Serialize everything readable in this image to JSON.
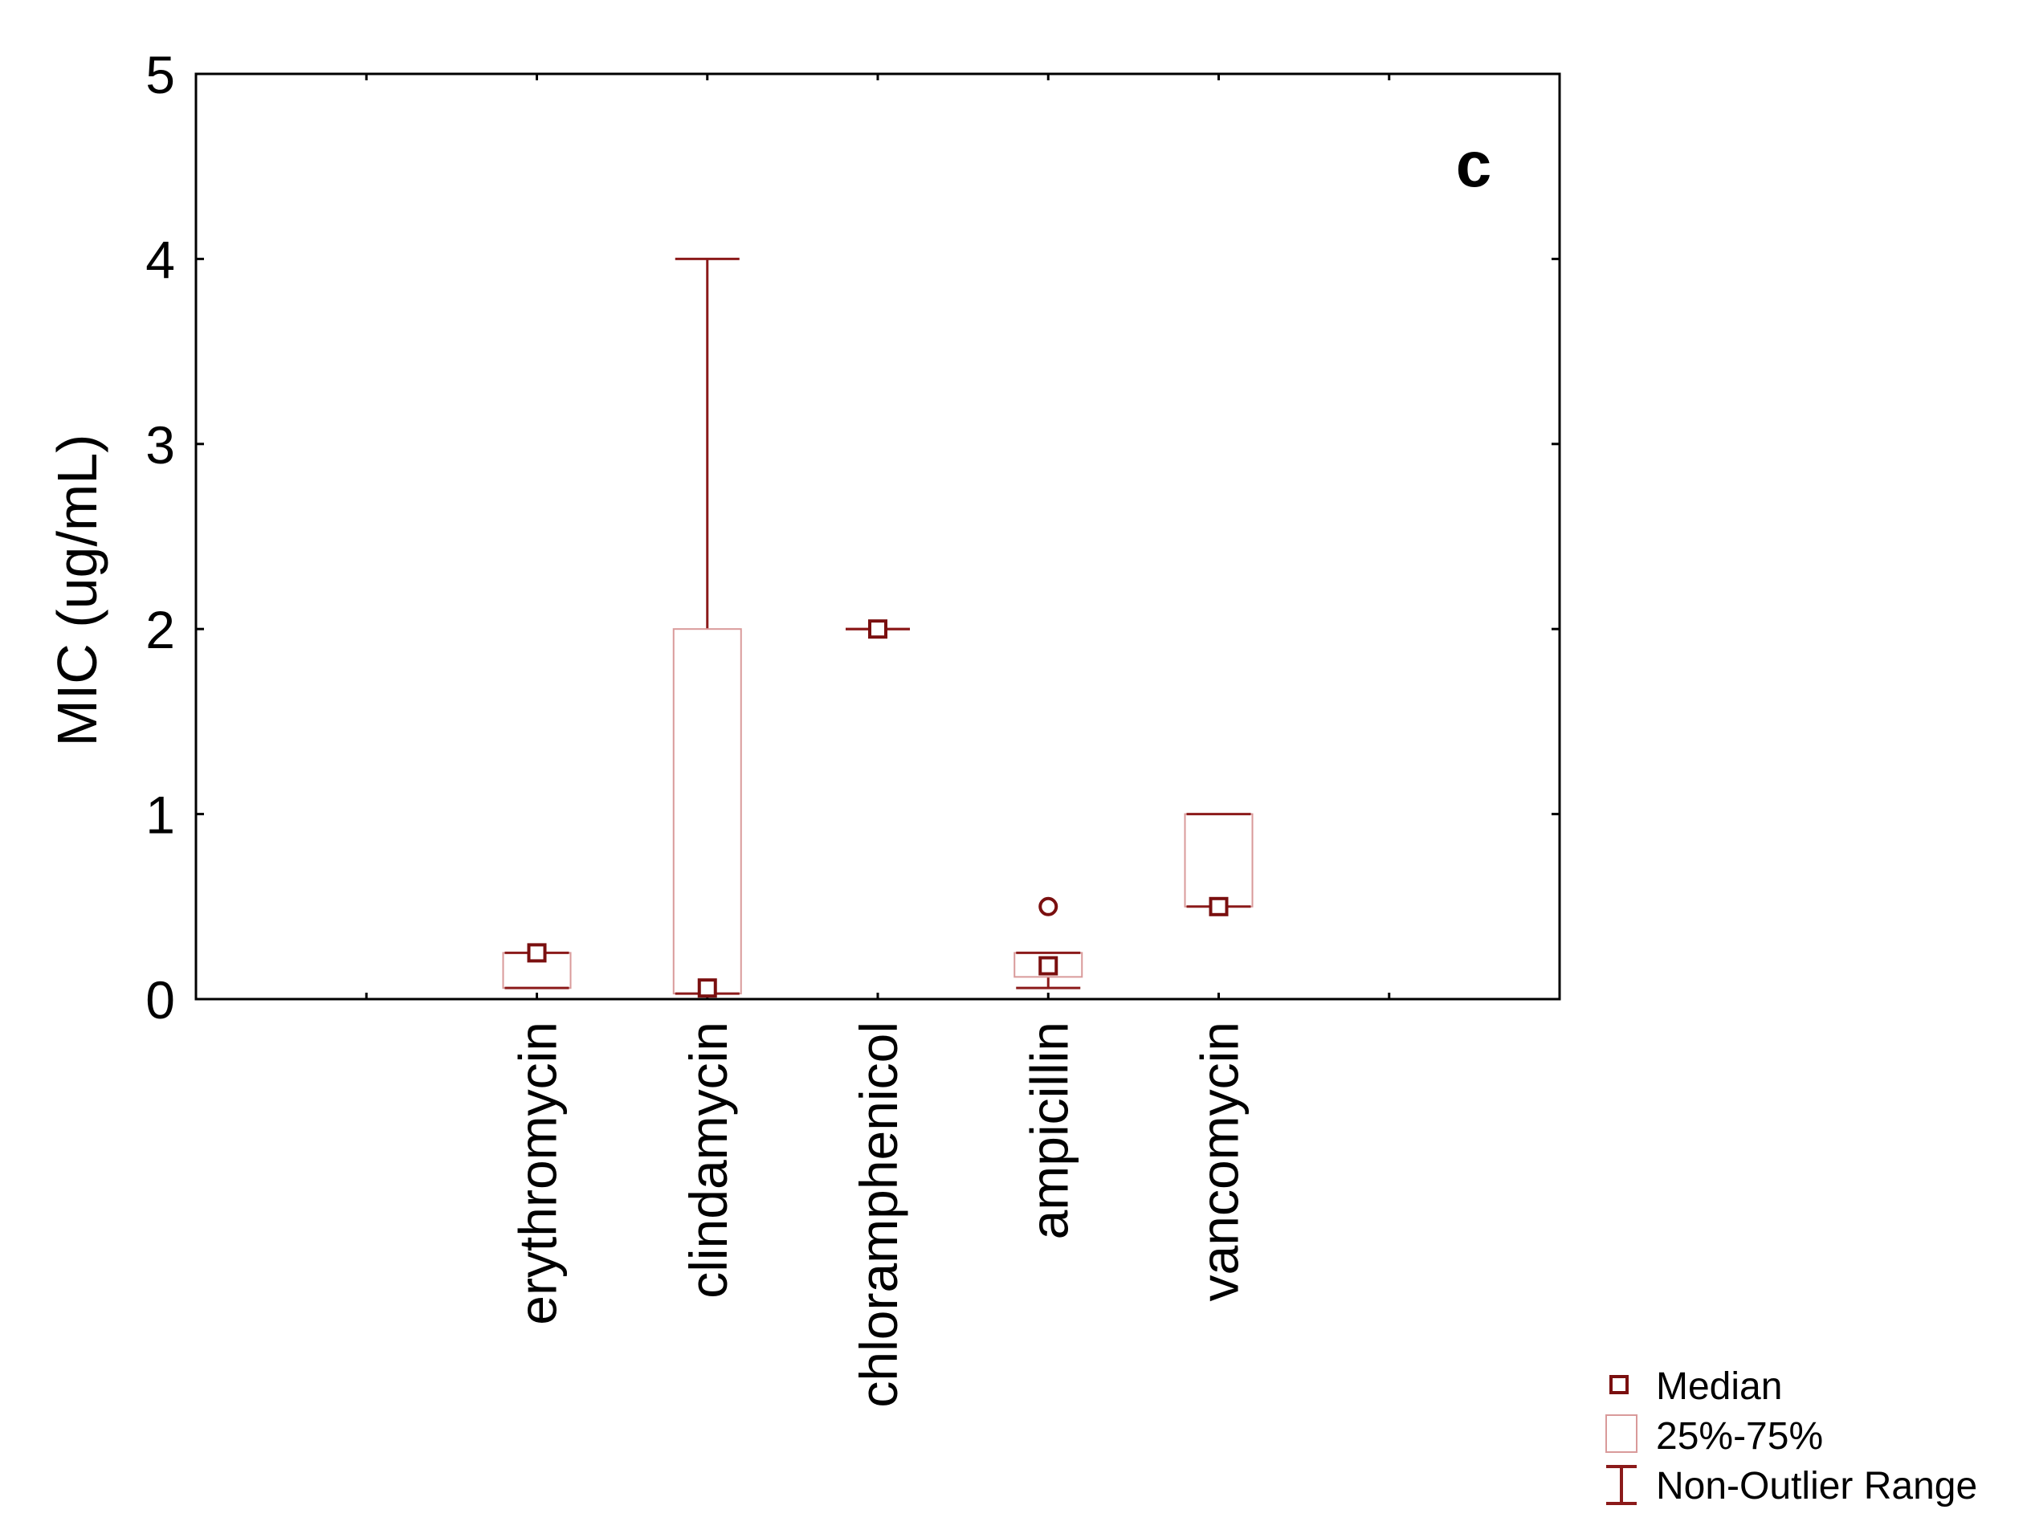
{
  "chart_data": {
    "type": "box",
    "panel_label": "c",
    "ylabel": "MIC (ug/mL)",
    "xlabel": "",
    "ylim": [
      0,
      5
    ],
    "yticks": [
      0,
      1,
      2,
      3,
      4,
      5
    ],
    "ytick_labels": [
      "0",
      "1",
      "2",
      "3",
      "4",
      "5"
    ],
    "grid": false,
    "categories": [
      "erythromycin",
      "clindamycin",
      "chloramphenicol",
      "ampicillin",
      "vancomycin"
    ],
    "series": [
      {
        "name": "erythromycin",
        "median": 0.25,
        "q1": 0.06,
        "q3": 0.25,
        "whisker_low": 0.06,
        "whisker_high": 0.25,
        "outliers": []
      },
      {
        "name": "clindamycin",
        "median": 0.06,
        "q1": 0.03,
        "q3": 2,
        "whisker_low": 0.03,
        "whisker_high": 4,
        "outliers": []
      },
      {
        "name": "chloramphenicol",
        "median": 2,
        "q1": 2,
        "q3": 2,
        "whisker_low": 2,
        "whisker_high": 2,
        "outliers": []
      },
      {
        "name": "ampicillin",
        "median": 0.18,
        "q1": 0.12,
        "q3": 0.25,
        "whisker_low": 0.06,
        "whisker_high": 0.25,
        "outliers": [
          0.5
        ]
      },
      {
        "name": "vancomycin",
        "median": 0.5,
        "q1": 0.5,
        "q3": 1,
        "whisker_low": 0.5,
        "whisker_high": 1,
        "outliers": []
      }
    ],
    "legend": {
      "position": "bottom-right",
      "entries": [
        {
          "symbol": "median",
          "label": "Median"
        },
        {
          "symbol": "box",
          "label": "25%-75%"
        },
        {
          "symbol": "whisker",
          "label": "Non-Outlier Range"
        }
      ]
    },
    "colors": {
      "median": "#7a0f0f",
      "whisker": "#8b1a1a",
      "box": "#d99a9a",
      "axis": "#000000"
    }
  }
}
